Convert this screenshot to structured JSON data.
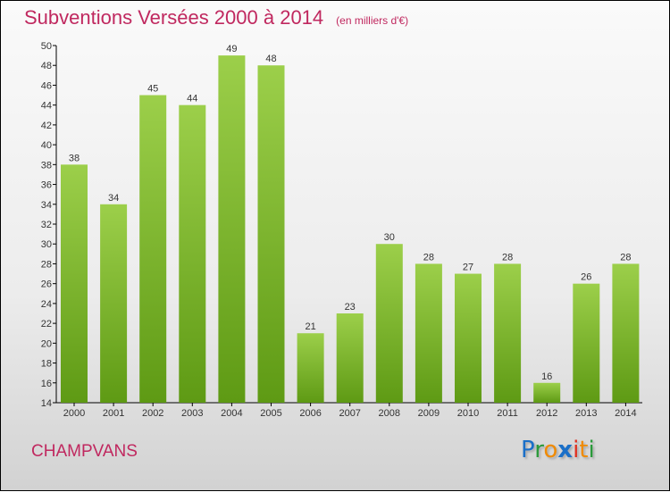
{
  "title": "Subventions Versées 2000 à 2014",
  "unit": "(en milliers d'€)",
  "town": "CHAMPVANS",
  "logo": "Proxiti",
  "colors": {
    "title": "#c0285f",
    "bar_top": "#9ccf4a",
    "bar_bottom": "#5e9a14"
  },
  "chart_data": {
    "type": "bar",
    "title": "Subventions Versées 2000 à 2014",
    "ylabel": "(en milliers d'€)",
    "categories": [
      "2000",
      "2001",
      "2002",
      "2003",
      "2004",
      "2005",
      "2006",
      "2007",
      "2008",
      "2009",
      "2010",
      "2011",
      "2012",
      "2013",
      "2014"
    ],
    "values": [
      38,
      34,
      45,
      44,
      49,
      48,
      21,
      23,
      30,
      28,
      27,
      28,
      16,
      26,
      28
    ],
    "ylim": [
      14,
      50
    ],
    "yticks": [
      14,
      16,
      18,
      20,
      22,
      24,
      26,
      28,
      30,
      32,
      34,
      36,
      38,
      40,
      42,
      44,
      46,
      48,
      50
    ],
    "grid": false
  }
}
